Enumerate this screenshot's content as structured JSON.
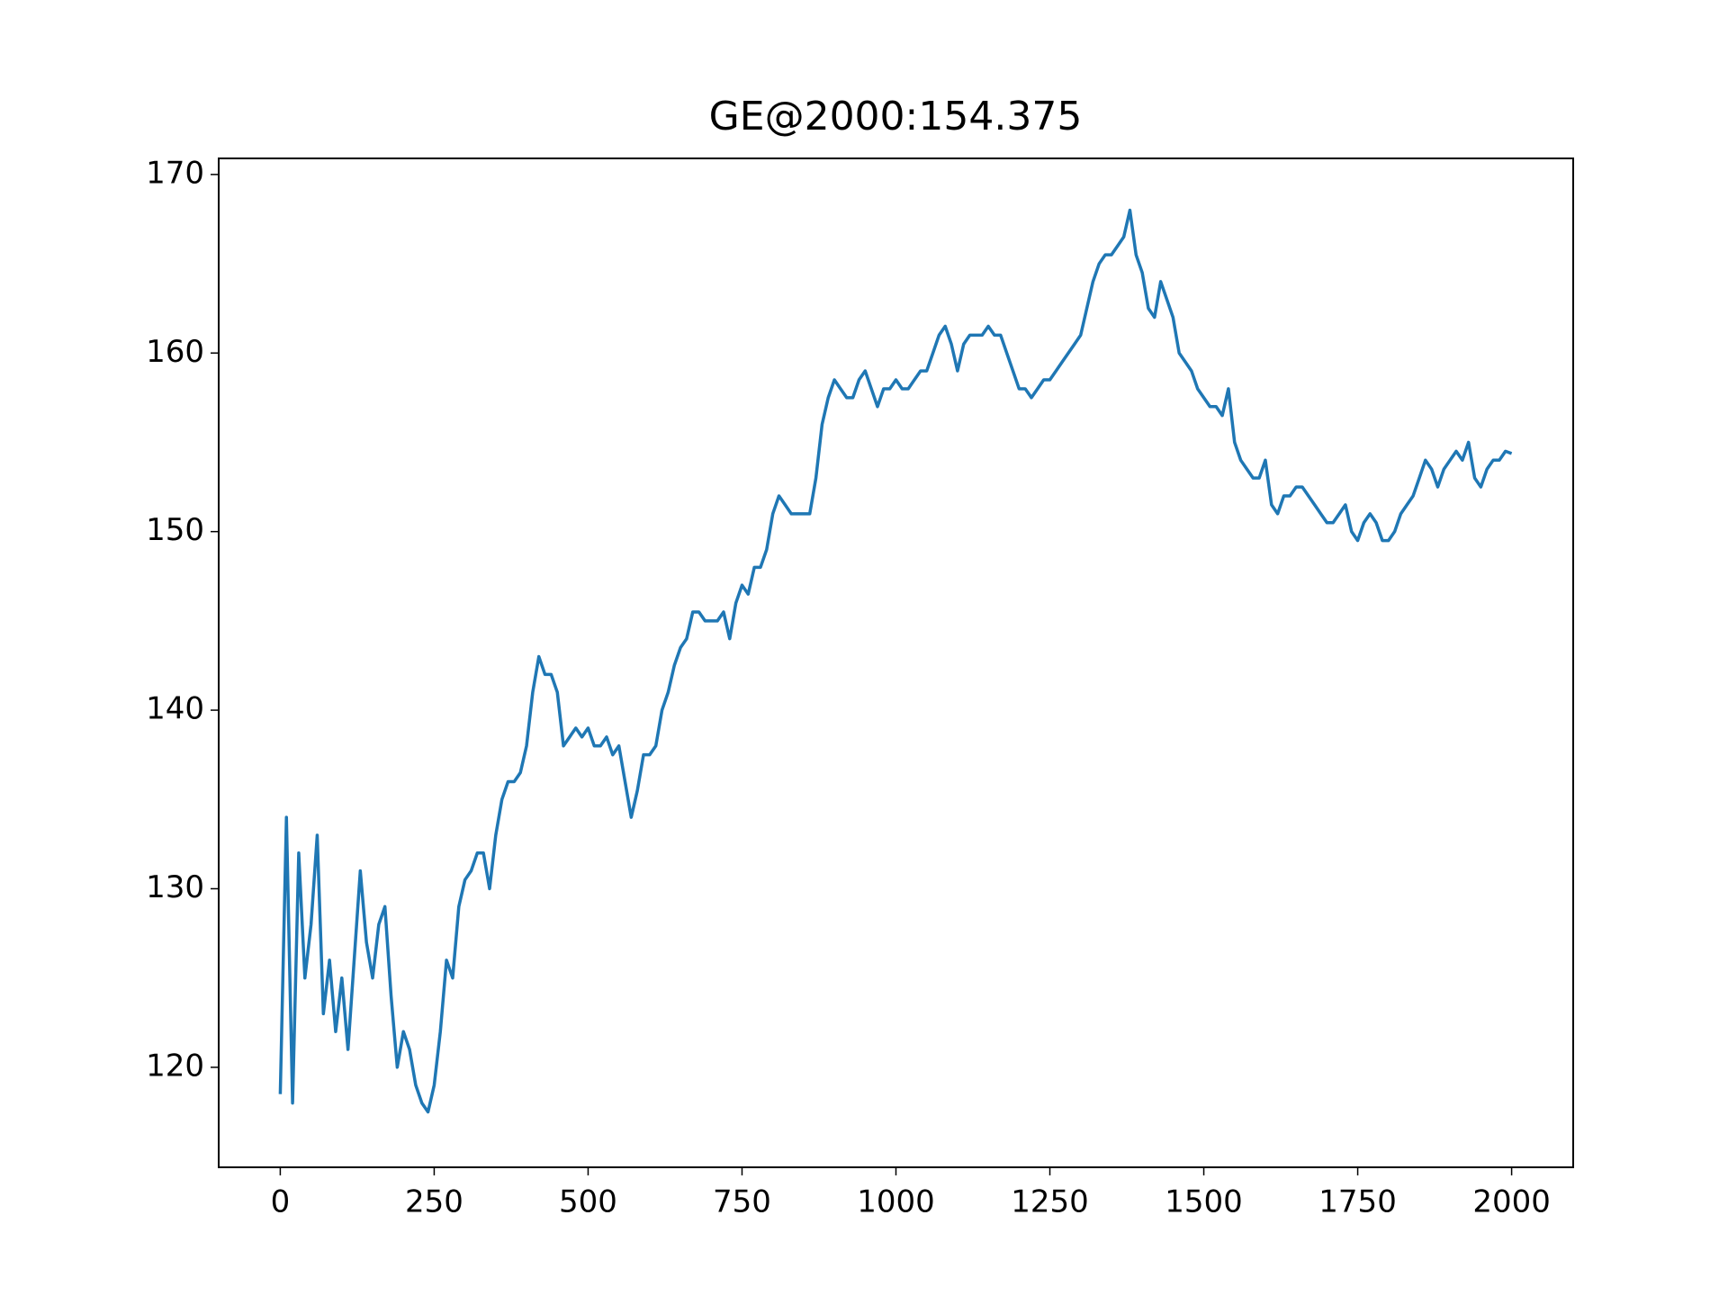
{
  "chart_data": {
    "type": "line",
    "title": "GE@2000:154.375",
    "x": [
      0,
      10,
      20,
      30,
      40,
      50,
      60,
      70,
      80,
      90,
      100,
      110,
      120,
      130,
      140,
      150,
      160,
      170,
      180,
      190,
      200,
      210,
      220,
      230,
      240,
      250,
      260,
      270,
      280,
      290,
      300,
      310,
      320,
      330,
      340,
      350,
      360,
      370,
      380,
      390,
      400,
      410,
      420,
      430,
      440,
      450,
      460,
      470,
      480,
      490,
      500,
      510,
      520,
      530,
      540,
      550,
      560,
      570,
      580,
      590,
      600,
      610,
      620,
      630,
      640,
      650,
      660,
      670,
      680,
      690,
      700,
      710,
      720,
      730,
      740,
      750,
      760,
      770,
      780,
      790,
      800,
      810,
      820,
      830,
      840,
      850,
      860,
      870,
      880,
      890,
      900,
      910,
      920,
      930,
      940,
      950,
      960,
      970,
      980,
      990,
      1000,
      1010,
      1020,
      1030,
      1040,
      1050,
      1060,
      1070,
      1080,
      1090,
      1100,
      1110,
      1120,
      1130,
      1140,
      1150,
      1160,
      1170,
      1180,
      1190,
      1200,
      1210,
      1220,
      1230,
      1240,
      1250,
      1260,
      1270,
      1280,
      1290,
      1300,
      1310,
      1320,
      1330,
      1340,
      1350,
      1360,
      1370,
      1380,
      1390,
      1400,
      1410,
      1420,
      1430,
      1440,
      1450,
      1460,
      1470,
      1480,
      1490,
      1500,
      1510,
      1520,
      1530,
      1540,
      1550,
      1560,
      1570,
      1580,
      1590,
      1600,
      1610,
      1620,
      1630,
      1640,
      1650,
      1660,
      1670,
      1680,
      1690,
      1700,
      1710,
      1720,
      1730,
      1740,
      1750,
      1760,
      1770,
      1780,
      1790,
      1800,
      1810,
      1820,
      1830,
      1840,
      1850,
      1860,
      1870,
      1880,
      1890,
      1900,
      1910,
      1920,
      1930,
      1940,
      1950,
      1960,
      1970,
      1980,
      1990,
      2000
    ],
    "values": [
      118.5,
      134,
      118,
      132,
      125,
      128,
      133,
      123,
      126,
      122,
      125,
      121,
      126,
      131,
      127,
      125,
      128,
      129,
      124,
      120,
      122,
      121,
      119,
      118,
      117.5,
      119,
      122,
      126,
      125,
      129,
      130.5,
      131,
      132,
      132,
      130,
      133,
      135,
      136,
      136,
      136.5,
      138,
      141,
      143,
      142,
      142,
      141,
      138,
      138.5,
      139,
      138.5,
      139,
      138,
      138,
      138.5,
      137.5,
      138,
      136,
      134,
      135.5,
      137.5,
      137.5,
      138,
      140,
      141,
      142.5,
      143.5,
      144,
      145.5,
      145.5,
      145,
      145,
      145,
      145.5,
      144,
      146,
      147,
      146.5,
      148,
      148,
      149,
      151,
      152,
      151.5,
      151,
      151,
      151,
      151,
      153,
      156,
      157.5,
      158.5,
      158,
      157.5,
      157.5,
      158.5,
      159,
      158,
      157,
      158,
      158,
      158.5,
      158,
      158,
      158.5,
      159,
      159,
      160,
      161,
      161.5,
      160.5,
      159,
      160.5,
      161,
      161,
      161,
      161.5,
      161,
      161,
      160,
      159,
      158,
      158,
      157.5,
      158,
      158.5,
      158.5,
      159,
      159.5,
      160,
      160.5,
      161,
      162.5,
      164,
      165,
      165.5,
      165.5,
      166,
      166.5,
      168,
      165.5,
      164.5,
      162.5,
      162,
      164,
      163,
      162,
      160,
      159.5,
      159,
      158,
      157.5,
      157,
      157,
      156.5,
      158,
      155,
      154,
      153.5,
      153,
      153,
      154,
      151.5,
      151,
      152,
      152,
      152.5,
      152.5,
      152,
      151.5,
      151,
      150.5,
      150.5,
      151,
      151.5,
      150,
      149.5,
      150.5,
      151,
      150.5,
      149.5,
      149.5,
      150,
      151,
      151.5,
      152,
      153,
      154,
      153.5,
      152.5,
      153.5,
      154,
      154.5,
      154,
      155,
      153,
      152.5,
      153.5,
      154,
      154,
      154.5,
      154.375
    ],
    "color": "#1f77b4",
    "xlim": [
      -100,
      2100
    ],
    "xticks": [
      0,
      250,
      500,
      750,
      1000,
      1250,
      1500,
      1750,
      2000
    ],
    "ylim": [
      114.4,
      170.9
    ],
    "yticks": [
      120,
      130,
      140,
      150,
      160,
      170
    ]
  }
}
